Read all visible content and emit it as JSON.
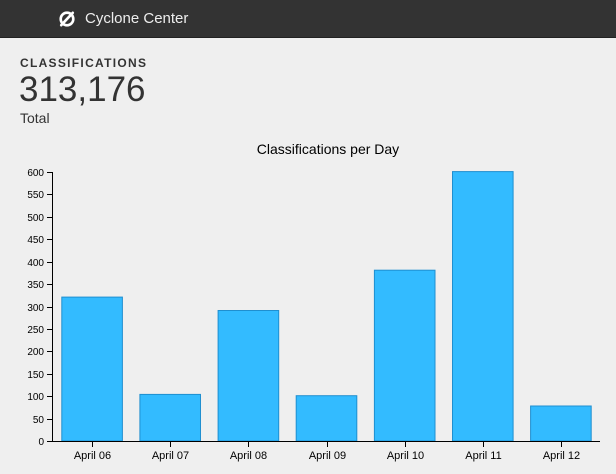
{
  "app": {
    "title": "Cyclone Center",
    "logo_icon": "cyclone-icon"
  },
  "stat": {
    "label": "CLASSIFICATIONS",
    "value": "313,176",
    "sublabel": "Total"
  },
  "colors": {
    "topbar": "#333333",
    "bar_fill": "#33bbff",
    "bar_stroke": "#1f8fd0",
    "background": "#efefef"
  },
  "chart_data": {
    "type": "bar",
    "title": "Classifications per Day",
    "categories": [
      "April 06",
      "April 07",
      "April 08",
      "April 09",
      "April 10",
      "April 11",
      "April 12"
    ],
    "values": [
      321,
      104,
      291,
      101,
      381,
      601,
      78
    ],
    "ylim": [
      0,
      600
    ],
    "yticks": [
      0,
      50,
      100,
      150,
      200,
      250,
      300,
      350,
      400,
      450,
      500,
      550,
      600
    ],
    "xlabel": "",
    "ylabel": ""
  }
}
